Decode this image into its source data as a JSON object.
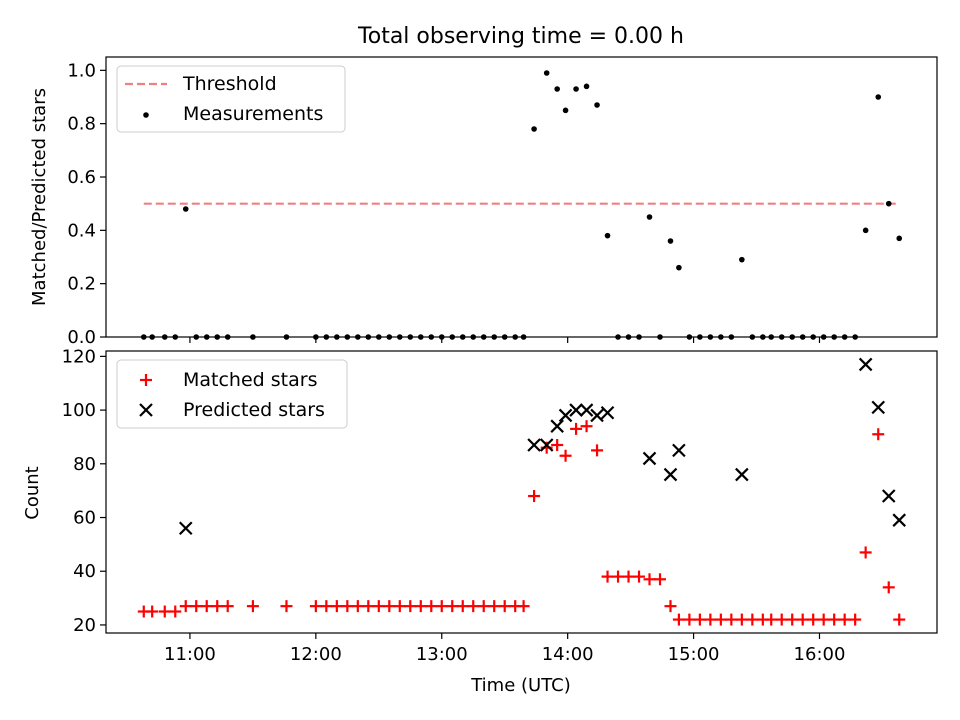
{
  "title": "Total observing time = 0.00 h",
  "chart_data": [
    {
      "type": "scatter",
      "ylabel": "Matched/Predicted stars",
      "ylim": [
        0,
        1.05
      ],
      "xlim": [
        "10:20",
        "16:56"
      ],
      "yticks": [
        "0.0",
        "0.2",
        "0.4",
        "0.6",
        "0.8",
        "1.0"
      ],
      "legend_position": "top-left",
      "legend": [
        "Threshold",
        "Measurements"
      ],
      "threshold": {
        "name": "Threshold",
        "value": 0.5,
        "x_range": [
          "10:38",
          "16:38"
        ],
        "color": "#f08080"
      },
      "series": [
        {
          "name": "Measurements",
          "color": "#000000",
          "points": [
            [
              "10:38",
              0
            ],
            [
              "10:42",
              0
            ],
            [
              "10:48",
              0
            ],
            [
              "10:53",
              0
            ],
            [
              "10:58",
              0.48
            ],
            [
              "11:03",
              0
            ],
            [
              "11:08",
              0
            ],
            [
              "11:13",
              0
            ],
            [
              "11:18",
              0
            ],
            [
              "11:30",
              0
            ],
            [
              "11:46",
              0
            ],
            [
              "12:00",
              0
            ],
            [
              "12:05",
              0
            ],
            [
              "12:10",
              0
            ],
            [
              "12:15",
              0
            ],
            [
              "12:20",
              0
            ],
            [
              "12:25",
              0
            ],
            [
              "12:30",
              0
            ],
            [
              "12:35",
              0
            ],
            [
              "12:40",
              0
            ],
            [
              "12:45",
              0
            ],
            [
              "12:50",
              0
            ],
            [
              "12:55",
              0
            ],
            [
              "13:00",
              0
            ],
            [
              "13:05",
              0
            ],
            [
              "13:10",
              0
            ],
            [
              "13:15",
              0
            ],
            [
              "13:20",
              0
            ],
            [
              "13:25",
              0
            ],
            [
              "13:30",
              0
            ],
            [
              "13:35",
              0
            ],
            [
              "13:39",
              0
            ],
            [
              "13:44",
              0.78
            ],
            [
              "13:50",
              0.99
            ],
            [
              "13:55",
              0.93
            ],
            [
              "13:59",
              0.85
            ],
            [
              "14:04",
              0.93
            ],
            [
              "14:09",
              0.94
            ],
            [
              "14:14",
              0.87
            ],
            [
              "14:19",
              0.38
            ],
            [
              "14:24",
              0
            ],
            [
              "14:29",
              0
            ],
            [
              "14:34",
              0
            ],
            [
              "14:39",
              0.45
            ],
            [
              "14:44",
              0
            ],
            [
              "14:49",
              0.36
            ],
            [
              "14:53",
              0.26
            ],
            [
              "14:58",
              0
            ],
            [
              "15:03",
              0
            ],
            [
              "15:08",
              0
            ],
            [
              "15:13",
              0
            ],
            [
              "15:18",
              0
            ],
            [
              "15:23",
              0.29
            ],
            [
              "15:28",
              0
            ],
            [
              "15:33",
              0
            ],
            [
              "15:37",
              0
            ],
            [
              "15:42",
              0
            ],
            [
              "15:47",
              0
            ],
            [
              "15:52",
              0
            ],
            [
              "15:57",
              0
            ],
            [
              "16:02",
              0
            ],
            [
              "16:07",
              0
            ],
            [
              "16:12",
              0
            ],
            [
              "16:17",
              0
            ],
            [
              "16:22",
              0.4
            ],
            [
              "16:28",
              0.9
            ],
            [
              "16:33",
              0.5
            ],
            [
              "16:38",
              0.37
            ]
          ]
        }
      ]
    },
    {
      "type": "scatter",
      "xlabel": "Time (UTC)",
      "ylabel": "Count",
      "ylim": [
        17,
        122
      ],
      "xlim": [
        "10:20",
        "16:56"
      ],
      "xticks": [
        "11:00",
        "12:00",
        "13:00",
        "14:00",
        "15:00",
        "16:00"
      ],
      "yticks": [
        "20",
        "40",
        "60",
        "80",
        "100",
        "120"
      ],
      "legend_position": "top-left",
      "legend": [
        "Matched stars",
        "Predicted stars"
      ],
      "series": [
        {
          "name": "Matched stars",
          "marker": "+",
          "color": "#ff0000",
          "points": [
            [
              "10:38",
              25
            ],
            [
              "10:42",
              25
            ],
            [
              "10:48",
              25
            ],
            [
              "10:53",
              25
            ],
            [
              "10:58",
              27
            ],
            [
              "11:03",
              27
            ],
            [
              "11:08",
              27
            ],
            [
              "11:13",
              27
            ],
            [
              "11:18",
              27
            ],
            [
              "11:30",
              27
            ],
            [
              "11:46",
              27
            ],
            [
              "12:00",
              27
            ],
            [
              "12:05",
              27
            ],
            [
              "12:10",
              27
            ],
            [
              "12:15",
              27
            ],
            [
              "12:20",
              27
            ],
            [
              "12:25",
              27
            ],
            [
              "12:30",
              27
            ],
            [
              "12:35",
              27
            ],
            [
              "12:40",
              27
            ],
            [
              "12:45",
              27
            ],
            [
              "12:50",
              27
            ],
            [
              "12:55",
              27
            ],
            [
              "13:00",
              27
            ],
            [
              "13:05",
              27
            ],
            [
              "13:10",
              27
            ],
            [
              "13:15",
              27
            ],
            [
              "13:20",
              27
            ],
            [
              "13:25",
              27
            ],
            [
              "13:30",
              27
            ],
            [
              "13:35",
              27
            ],
            [
              "13:39",
              27
            ],
            [
              "13:44",
              68
            ],
            [
              "13:50",
              86
            ],
            [
              "13:55",
              87
            ],
            [
              "13:59",
              83
            ],
            [
              "14:04",
              93
            ],
            [
              "14:09",
              94
            ],
            [
              "14:14",
              85
            ],
            [
              "14:19",
              38
            ],
            [
              "14:24",
              38
            ],
            [
              "14:29",
              38
            ],
            [
              "14:34",
              38
            ],
            [
              "14:39",
              37
            ],
            [
              "14:44",
              37
            ],
            [
              "14:49",
              27
            ],
            [
              "14:53",
              22
            ],
            [
              "14:58",
              22
            ],
            [
              "15:03",
              22
            ],
            [
              "15:08",
              22
            ],
            [
              "15:13",
              22
            ],
            [
              "15:18",
              22
            ],
            [
              "15:23",
              22
            ],
            [
              "15:28",
              22
            ],
            [
              "15:33",
              22
            ],
            [
              "15:37",
              22
            ],
            [
              "15:42",
              22
            ],
            [
              "15:47",
              22
            ],
            [
              "15:52",
              22
            ],
            [
              "15:57",
              22
            ],
            [
              "16:02",
              22
            ],
            [
              "16:07",
              22
            ],
            [
              "16:12",
              22
            ],
            [
              "16:17",
              22
            ],
            [
              "16:22",
              47
            ],
            [
              "16:28",
              91
            ],
            [
              "16:33",
              34
            ],
            [
              "16:38",
              22
            ]
          ]
        },
        {
          "name": "Predicted stars",
          "marker": "x",
          "color": "#000000",
          "points": [
            [
              "10:58",
              56
            ],
            [
              "13:44",
              87
            ],
            [
              "13:50",
              87
            ],
            [
              "13:55",
              94
            ],
            [
              "13:59",
              98
            ],
            [
              "14:04",
              100
            ],
            [
              "14:09",
              100
            ],
            [
              "14:14",
              98
            ],
            [
              "14:19",
              99
            ],
            [
              "14:39",
              82
            ],
            [
              "14:49",
              76
            ],
            [
              "14:53",
              85
            ],
            [
              "15:23",
              76
            ],
            [
              "16:22",
              117
            ],
            [
              "16:28",
              101
            ],
            [
              "16:33",
              68
            ],
            [
              "16:38",
              59
            ]
          ]
        }
      ]
    }
  ]
}
